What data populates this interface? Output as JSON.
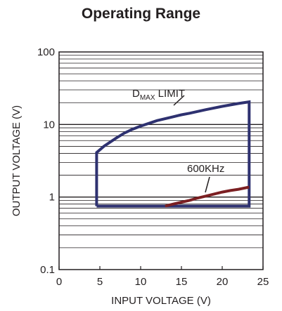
{
  "chart_data": {
    "type": "line",
    "title": "Operating Range",
    "xlabel": "INPUT VOLTAGE (V)",
    "ylabel": "OUTPUT VOLTAGE (V)",
    "xlim": [
      0,
      25
    ],
    "ylim": [
      0.1,
      100
    ],
    "yscale": "log",
    "grid": true,
    "x_ticks": [
      0,
      5,
      10,
      15,
      20,
      25
    ],
    "x_tick_labels": [
      "0",
      "5",
      "10",
      "15",
      "20",
      "25"
    ],
    "y_ticks": [
      0.1,
      1,
      10,
      100
    ],
    "y_tick_labels": [
      "0.1",
      "1",
      "10",
      "100"
    ],
    "series": [
      {
        "color": "#2e3170",
        "x": [
          4.6,
          4.6,
          5.5,
          7,
          8,
          9,
          10,
          12,
          14,
          15,
          16,
          18,
          20,
          22,
          23.3,
          23.3,
          4.6
        ],
        "y": [
          0.75,
          4.1,
          5,
          6.5,
          7.6,
          8.6,
          9.5,
          11.3,
          12.8,
          13.6,
          14.3,
          16,
          17.8,
          19.5,
          20.5,
          0.75,
          0.75
        ]
      },
      {
        "color": "#7b1f22",
        "x": [
          13,
          14,
          15,
          16,
          17,
          18,
          19,
          20,
          21,
          22,
          23.3
        ],
        "y": [
          0.75,
          0.8,
          0.85,
          0.9,
          0.97,
          1.03,
          1.1,
          1.17,
          1.23,
          1.28,
          1.37
        ]
      }
    ],
    "annotations": [
      {
        "main": "D",
        "sub": "MAX",
        "rest": " LIMIT"
      },
      {
        "text": "600KHz"
      }
    ]
  }
}
